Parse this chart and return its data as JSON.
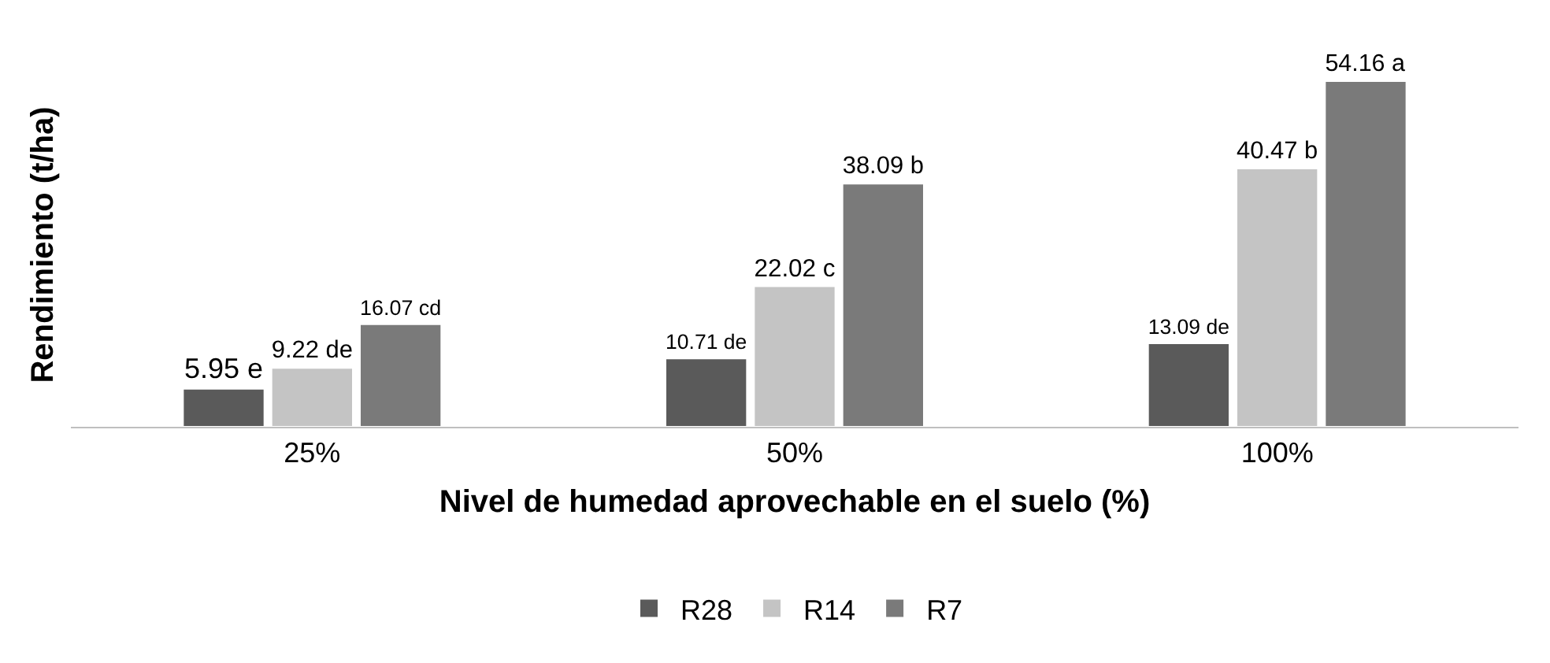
{
  "chart_data": {
    "type": "bar",
    "xlabel": "Nivel de humedad aprovechable en el suelo (%)",
    "ylabel": "Rendimiento (t/ha)",
    "categories": [
      "25%",
      "50%",
      "100%"
    ],
    "series": [
      {
        "name": "R28",
        "color": "#5a5a5a",
        "values": [
          5.95,
          10.71,
          13.09
        ],
        "value_labels": [
          "5.95 e",
          "10.71 de",
          "13.09 de"
        ]
      },
      {
        "name": "R14",
        "color": "#c4c4c4",
        "values": [
          9.22,
          22.02,
          40.47
        ],
        "value_labels": [
          "9.22 de",
          "22.02 c",
          "40.47 b"
        ]
      },
      {
        "name": "R7",
        "color": "#7a7a7a",
        "values": [
          16.07,
          38.09,
          54.16
        ],
        "value_labels": [
          "16.07 cd",
          "38.09 b",
          "54.16 a"
        ]
      }
    ],
    "grid": false,
    "legend": "bottom",
    "tick_labels": "x"
  }
}
